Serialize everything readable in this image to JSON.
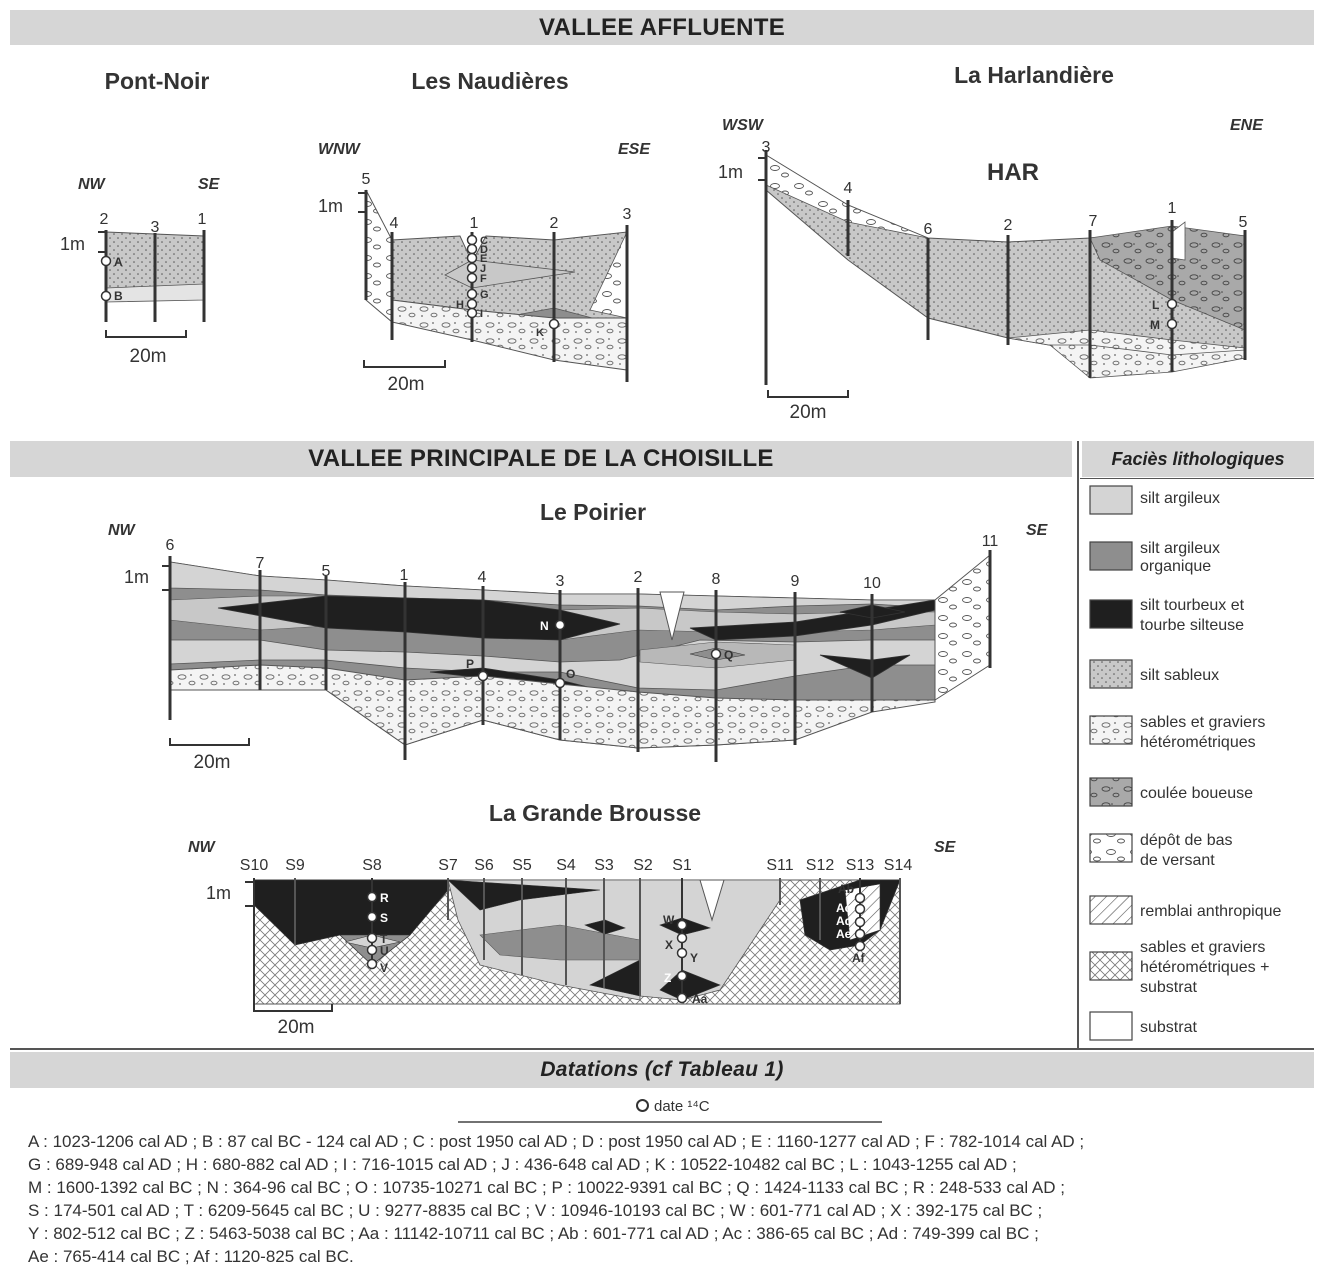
{
  "titles": {
    "top_band": "VALLEE AFFLUENTE",
    "middle_band": "VALLEE PRINCIPALE DE LA CHOISILLE",
    "dating_band": "Datations (cf Tableau 1)",
    "legend_header": "Faciès lithologiques"
  },
  "sections": {
    "pont_noir": {
      "title": "Pont-Noir",
      "left": "NW",
      "right": "SE",
      "cores": [
        "2",
        "3",
        "1"
      ],
      "scale_v": "1m",
      "scale_h": "20m",
      "dates": [
        "A",
        "B"
      ]
    },
    "naudieres": {
      "title": "Les Naudières",
      "left": "WNW",
      "right": "ESE",
      "cores": [
        "5",
        "4",
        "1",
        "2",
        "3"
      ],
      "scale_v": "1m",
      "scale_h": "20m",
      "dates": [
        "C",
        "D",
        "E",
        "F",
        "G",
        "H",
        "I",
        "J",
        "K"
      ]
    },
    "harlandiere": {
      "title": "La Harlandière",
      "subtitle": "HAR",
      "left": "WSW",
      "right": "ENE",
      "cores": [
        "3",
        "4",
        "6",
        "2",
        "7",
        "1",
        "5"
      ],
      "scale_v": "1m",
      "scale_h": "20m",
      "dates": [
        "L",
        "M"
      ]
    },
    "poirier": {
      "title": "Le Poirier",
      "left": "NW",
      "right": "SE",
      "cores": [
        "6",
        "7",
        "5",
        "1",
        "4",
        "3",
        "2",
        "8",
        "9",
        "10",
        "11"
      ],
      "scale_v": "1m",
      "scale_h": "20m",
      "dates": [
        "N",
        "O",
        "P",
        "Q"
      ]
    },
    "grande_brousse": {
      "title": "La Grande Brousse",
      "left": "NW",
      "right": "SE",
      "cores": [
        "S10",
        "S9",
        "S8",
        "S7",
        "S6",
        "S5",
        "S4",
        "S3",
        "S2",
        "S1",
        "S11",
        "S12",
        "S13",
        "S14"
      ],
      "scale_v": "1m",
      "scale_h": "20m",
      "dates": [
        "R",
        "S",
        "T",
        "U",
        "V",
        "W",
        "X",
        "Y",
        "Z",
        "Aa",
        "Ab",
        "Ac",
        "Ad",
        "Ae",
        "Af"
      ]
    }
  },
  "legend": [
    {
      "label": "silt argileux",
      "fill": "#d4d4d4",
      "pattern": "plain"
    },
    {
      "label": "silt argileux organique",
      "fill": "#8e8e8e",
      "pattern": "plain"
    },
    {
      "label": "silt tourbeux et tourbe silteuse",
      "fill": "#1f1f1f",
      "pattern": "plain"
    },
    {
      "label": "silt sableux",
      "fill": "#c8c8c8",
      "pattern": "dots"
    },
    {
      "label": "sables et graviers hétérométriques",
      "fill": "#f4f4f4",
      "pattern": "gravel"
    },
    {
      "label": "coulée boueuse",
      "fill": "#a9a9a9",
      "pattern": "gravel"
    },
    {
      "label": "dépôt de bas de versant",
      "fill": "#ffffff",
      "pattern": "gravel"
    },
    {
      "label": "remblai anthropique",
      "fill": "#ffffff",
      "pattern": "hatch"
    },
    {
      "label": "sables et graviers hétérométriques + substrat",
      "fill": "#ffffff",
      "pattern": "cross"
    },
    {
      "label": "substrat",
      "fill": "#ffffff",
      "pattern": "plain"
    }
  ],
  "dating": {
    "symbol_label": "date ¹⁴C",
    "lines": [
      "A : 1023-1206 cal AD ; B : 87 cal BC - 124 cal AD ; C : post 1950 cal AD ; D : post 1950 cal AD ; E : 1160-1277 cal AD ; F : 782-1014 cal AD ;",
      "G : 689-948 cal AD ; H : 680-882 cal AD ; I : 716-1015 cal AD ; J : 436-648 cal AD ; K : 10522-10482 cal BC ; L : 1043-1255 cal AD ;",
      "M : 1600-1392 cal BC ; N : 364-96 cal BC ; O : 10735-10271 cal BC ; P : 10022-9391 cal BC ; Q : 1424-1133 cal BC ; R : 248-533 cal AD ;",
      "S : 174-501 cal AD ; T : 6209-5645 cal BC ; U : 9277-8835 cal BC ; V : 10946-10193 cal BC ; W : 601-771 cal AD ; X : 392-175 cal BC ;",
      "Y : 802-512 cal BC ; Z : 5463-5038 cal BC ; Aa : 11142-10711 cal BC ; Ab : 601-771 cal AD ; Ac : 386-65 cal BC ; Ad : 749-399 cal BC ;",
      "Ae : 765-414 cal BC ; Af : 1120-825 cal BC."
    ]
  }
}
